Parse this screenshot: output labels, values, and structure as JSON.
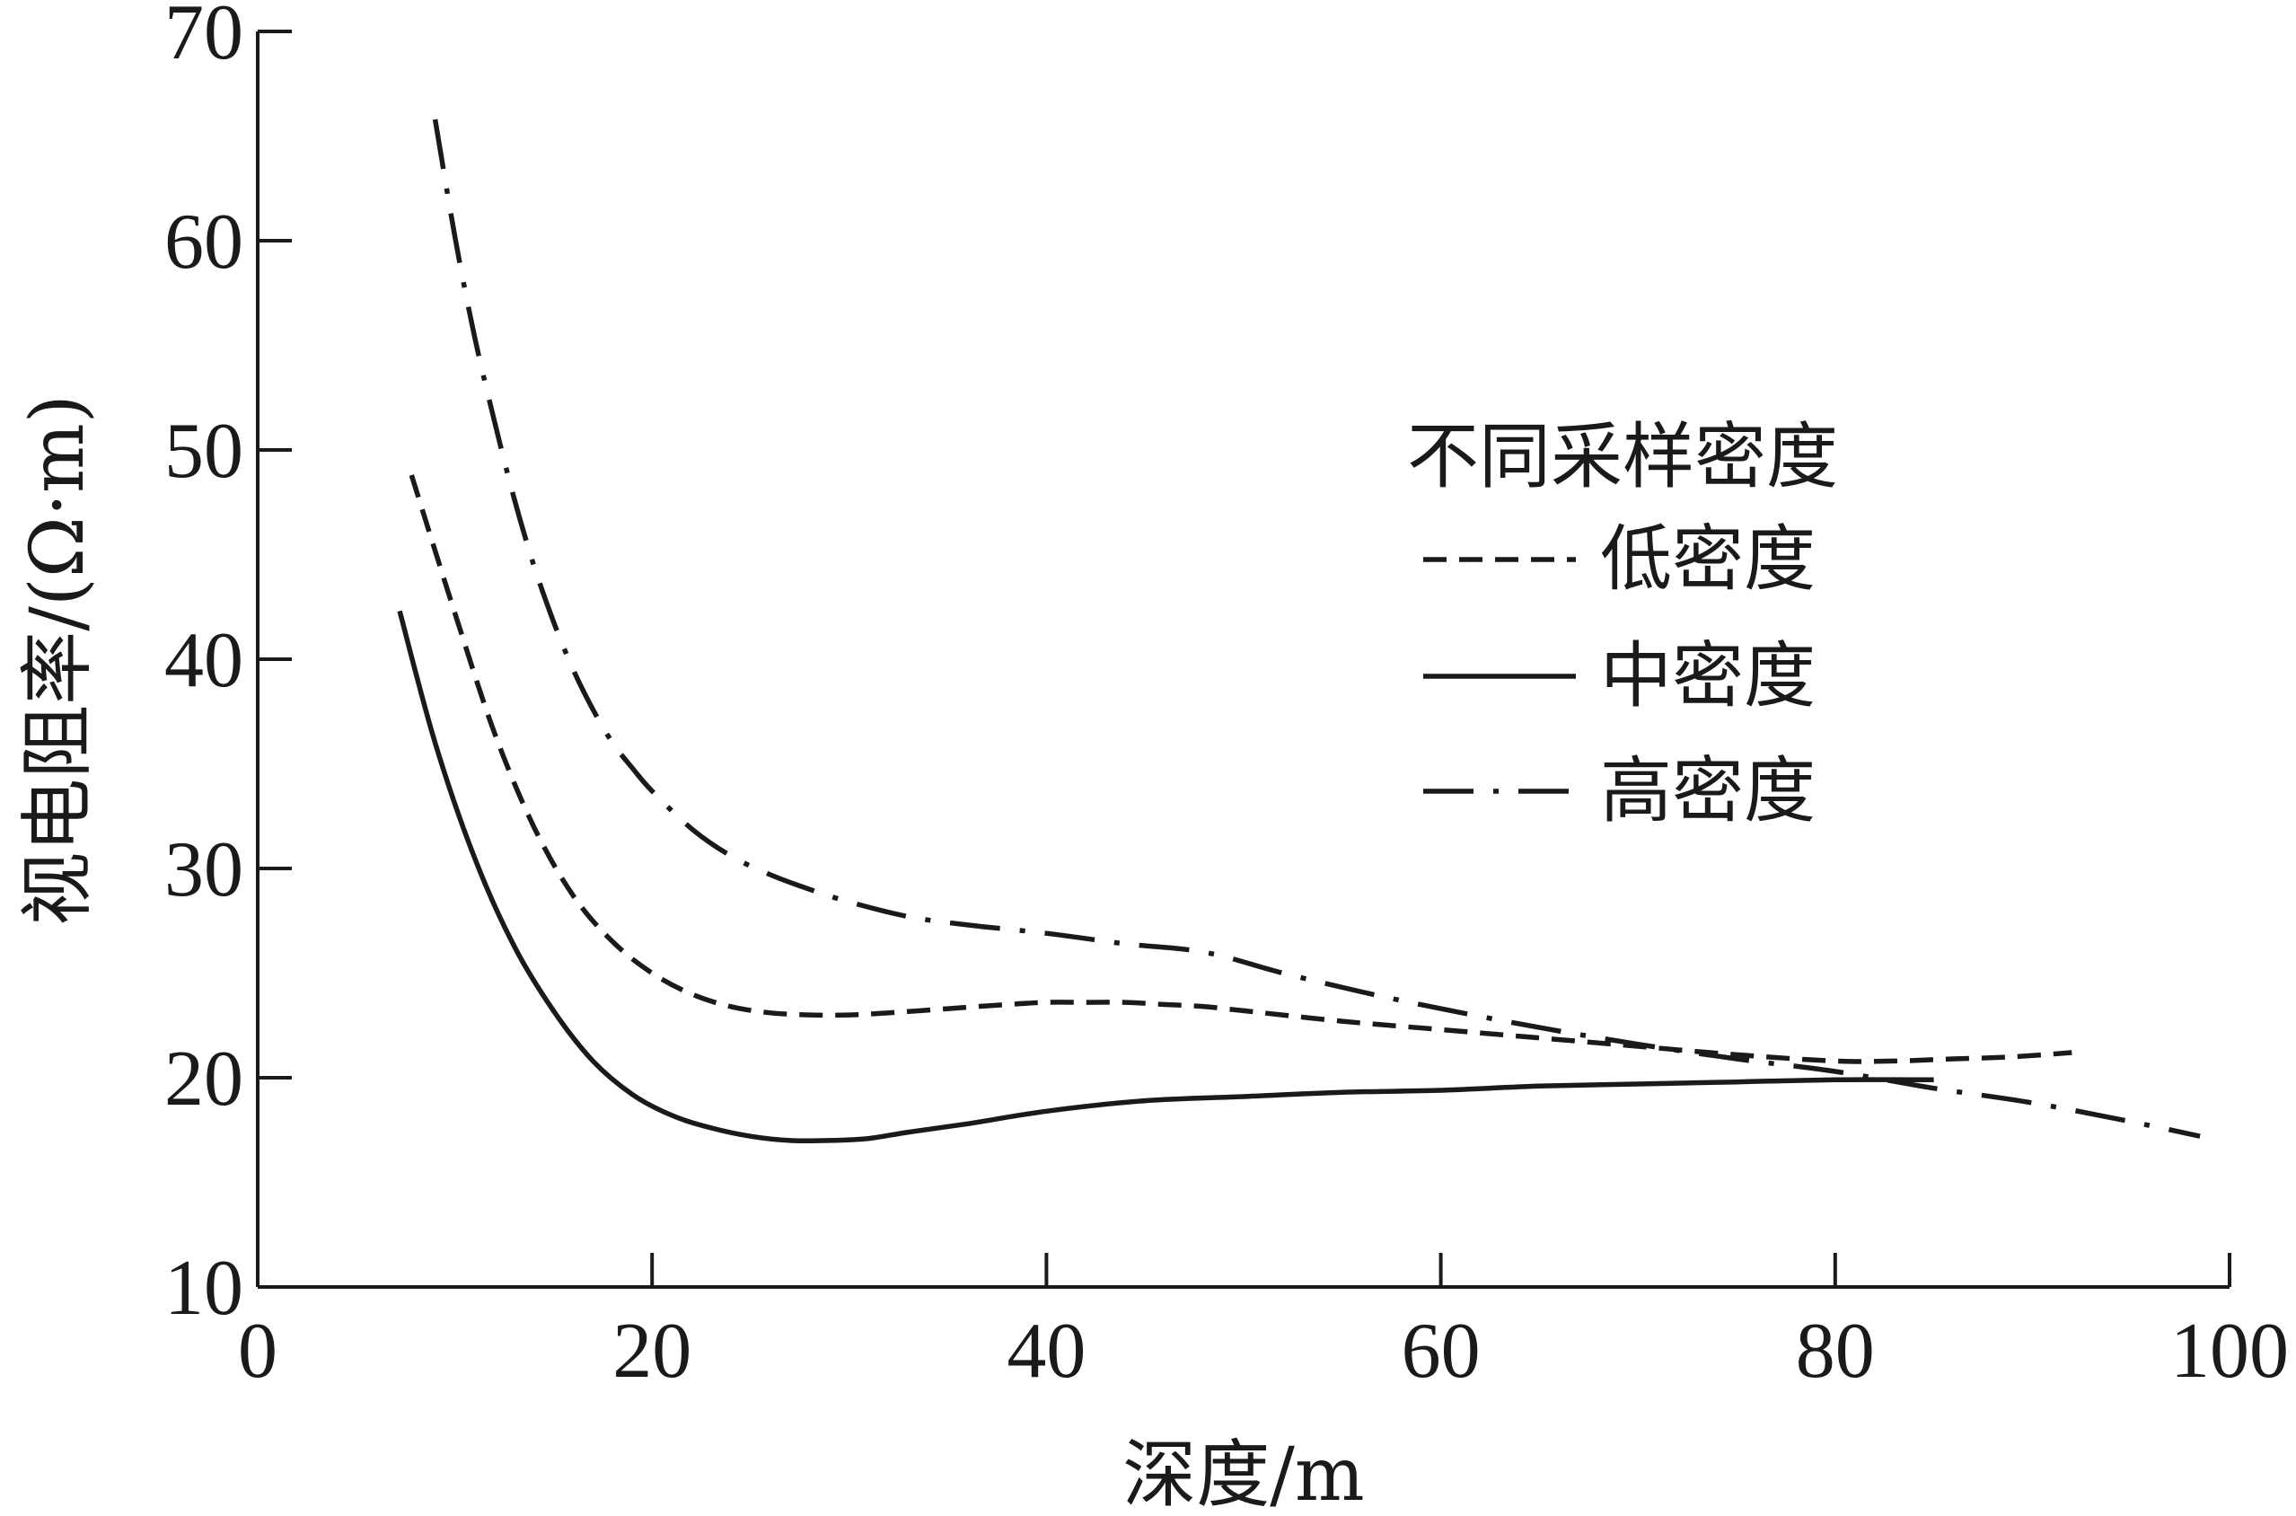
{
  "chart_data": {
    "type": "line",
    "xlabel": "深度/m",
    "ylabel": "视电阻率/(Ω·m)",
    "xlim": [
      0,
      100
    ],
    "ylim": [
      10,
      70
    ],
    "x_ticks": [
      "0",
      "20",
      "40",
      "60",
      "80",
      "100"
    ],
    "y_ticks": [
      "10",
      "20",
      "30",
      "40",
      "50",
      "60",
      "70"
    ],
    "grid": false,
    "legend": {
      "title": "不同采样密度",
      "placement": "right-middle"
    },
    "series": [
      {
        "name": "低密度",
        "style": "dashed",
        "color": "#1a1a1a",
        "x": [
          7.8,
          10,
          12,
          14,
          16,
          18,
          20,
          22,
          24,
          26,
          28,
          30,
          32,
          35,
          38,
          40,
          42,
          44,
          46,
          48,
          50,
          55,
          60,
          65,
          70,
          75,
          80,
          83,
          86,
          89,
          92
        ],
        "y": [
          48.8,
          42.2,
          36.5,
          32.0,
          28.7,
          26.5,
          25.0,
          24.0,
          23.4,
          23.1,
          23.0,
          23.0,
          23.1,
          23.3,
          23.5,
          23.6,
          23.6,
          23.6,
          23.5,
          23.4,
          23.2,
          22.7,
          22.3,
          21.9,
          21.5,
          21.1,
          20.8,
          20.8,
          20.9,
          21.0,
          21.2
        ]
      },
      {
        "name": "中密度",
        "style": "solid",
        "color": "#1a1a1a",
        "x": [
          7.2,
          9,
          11,
          13,
          15,
          17,
          19,
          21,
          23,
          25,
          27,
          29,
          31,
          33,
          36,
          40,
          45,
          50,
          55,
          60,
          65,
          70,
          75,
          80,
          85
        ],
        "y": [
          42.3,
          36.0,
          30.5,
          26.3,
          23.2,
          20.8,
          19.2,
          18.2,
          17.6,
          17.2,
          17.0,
          17.0,
          17.1,
          17.4,
          17.8,
          18.4,
          18.9,
          19.1,
          19.3,
          19.4,
          19.6,
          19.7,
          19.8,
          19.9,
          19.9
        ]
      },
      {
        "name": "高密度",
        "style": "dash-dot",
        "color": "#1a1a1a",
        "x": [
          9,
          10,
          11,
          12,
          13,
          14,
          15,
          16,
          17,
          18,
          19,
          20,
          22,
          24,
          26,
          28,
          30,
          33,
          36,
          40,
          44,
          48,
          52,
          56,
          60,
          65,
          70,
          75,
          80,
          85,
          90,
          95,
          98.5
        ],
        "y": [
          65.8,
          60.2,
          55.4,
          51.4,
          47.7,
          44.5,
          41.8,
          39.5,
          37.6,
          36.0,
          34.8,
          33.7,
          31.9,
          30.6,
          29.7,
          29.0,
          28.4,
          27.7,
          27.3,
          26.9,
          26.4,
          26.0,
          25.0,
          24.1,
          23.3,
          22.4,
          21.6,
          20.9,
          20.3,
          19.5,
          18.8,
          17.9,
          17.2
        ]
      }
    ]
  }
}
